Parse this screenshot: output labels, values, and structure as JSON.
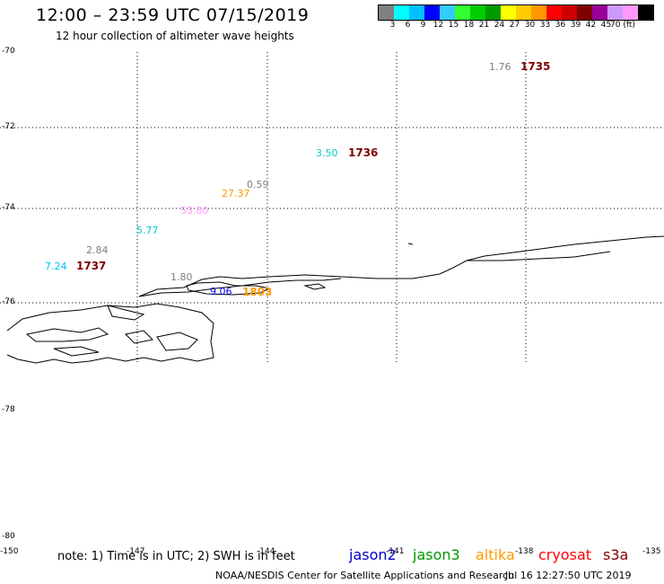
{
  "header": {
    "title": "12:00 – 23:59 UTC 07/15/2019",
    "subtitle": "12 hour collection of altimeter wave heights"
  },
  "colorbar": {
    "colors": [
      "#808080",
      "#00ffff",
      "#00bfff",
      "#0000ff",
      "#33ccff",
      "#33ff33",
      "#00cc00",
      "#009900",
      "#ffff00",
      "#ffcc00",
      "#ff9900",
      "#ff0000",
      "#cc0000",
      "#800000",
      "#990099",
      "#cc99ff",
      "#ff99ff",
      "#000000"
    ],
    "labels": [
      "3",
      "6",
      "9",
      "12",
      "15",
      "18",
      "21",
      "24",
      "27",
      "30",
      "33",
      "36",
      "39",
      "42",
      "45",
      "70 (ft)"
    ]
  },
  "axes": {
    "lat_labels": [
      "-70",
      "-72",
      "-74",
      "-76",
      "-78",
      "-80"
    ],
    "lon_labels": [
      "-150",
      "-147",
      "-144",
      "-141",
      "-138",
      "-135"
    ]
  },
  "observations": [
    {
      "text": "1.76",
      "color": "#808080"
    },
    {
      "text": "3.50",
      "color": "#00cccc"
    },
    {
      "text": "0.59",
      "color": "#808080"
    },
    {
      "text": "27.37",
      "color": "#ff9900"
    },
    {
      "text": "53.80",
      "color": "#ff99ff"
    },
    {
      "text": "5.77",
      "color": "#00cccc"
    },
    {
      "text": "2.84",
      "color": "#808080"
    },
    {
      "text": "7.24",
      "color": "#00bfff"
    },
    {
      "text": "1.80",
      "color": "#808080"
    },
    {
      "text": "9.06",
      "color": "#0000ff"
    }
  ],
  "time_labels": [
    {
      "text": "1735",
      "color": "#800000"
    },
    {
      "text": "1736",
      "color": "#800000"
    },
    {
      "text": "1737",
      "color": "#800000"
    },
    {
      "text": "1803",
      "color": "#ff9900"
    }
  ],
  "note": "note:  1) Time is in UTC;  2) SWH is in feet",
  "legend": [
    {
      "name": "jason2",
      "color": "#0000cc"
    },
    {
      "name": "jason3",
      "color": "#009900"
    },
    {
      "name": "altika",
      "color": "#ff9900"
    },
    {
      "name": "cryosat",
      "color": "#ff0000"
    },
    {
      "name": "s3a",
      "color": "#800000"
    }
  ],
  "footer": {
    "credit": "NOAA/NESDIS Center for Satellite Applications and Research",
    "timestamp": "Jul 16 12:27:50 UTC 2019"
  }
}
